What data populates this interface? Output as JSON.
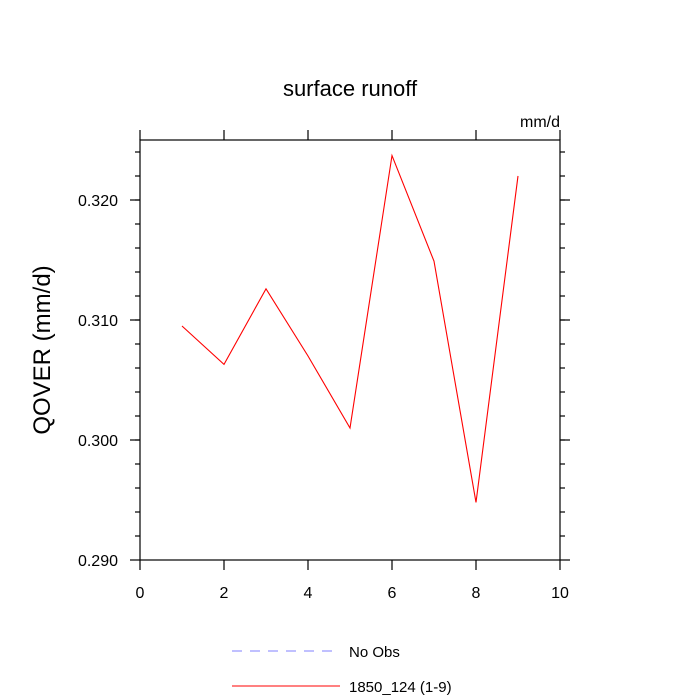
{
  "chart_data": {
    "type": "line",
    "title": "surface runoff",
    "units": "mm/d",
    "xlabel": "",
    "ylabel": "QOVER  (mm/d)",
    "xlim": [
      0,
      10
    ],
    "ylim": [
      0.29,
      0.325
    ],
    "x_ticks": [
      "0",
      "2",
      "4",
      "6",
      "8",
      "10"
    ],
    "y_ticks": [
      "0.290",
      "0.300",
      "0.310",
      "0.320"
    ],
    "grid": false,
    "legend_placement": "bottom",
    "series": [
      {
        "name": "No Obs",
        "color": "#8080ff",
        "style": "dashed",
        "x": [],
        "values": []
      },
      {
        "name": "1850_124 (1-9)",
        "color": "#ff0000",
        "style": "solid",
        "x": [
          1,
          2,
          3,
          4,
          5,
          6,
          7,
          8,
          9
        ],
        "values": [
          0.3095,
          0.3063,
          0.3126,
          0.307,
          0.301,
          0.3237,
          0.3149,
          0.2948,
          0.322
        ]
      }
    ]
  }
}
